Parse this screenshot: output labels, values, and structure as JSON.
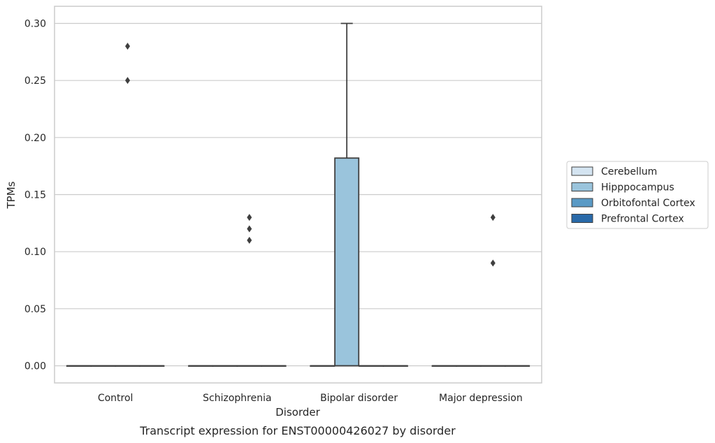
{
  "chart_data": {
    "type": "box",
    "title": "",
    "caption": "Transcript expression for ENST00000426027 by disorder",
    "xlabel": "Disorder",
    "ylabel": "TPMs",
    "ylim": [
      -0.015,
      0.315
    ],
    "yticks": [
      0.0,
      0.05,
      0.1,
      0.15,
      0.2,
      0.25,
      0.3
    ],
    "ytick_labels": [
      "0.00",
      "0.05",
      "0.10",
      "0.15",
      "0.20",
      "0.25",
      "0.30"
    ],
    "grid": "horizontal",
    "legend_position": "right",
    "categories": [
      "Control",
      "Schizophrenia",
      "Bipolar disorder",
      "Major depression"
    ],
    "hue_levels": [
      {
        "name": "Cerebellum",
        "color": "#d4e4f1"
      },
      {
        "name": "Hipppocampus",
        "color": "#9ac4dc"
      },
      {
        "name": "Orbitofontal Cortex",
        "color": "#5a9ac5"
      },
      {
        "name": "Prefrontal Cortex",
        "color": "#2a6aa9"
      }
    ],
    "boxes": [
      {
        "category": "Control",
        "hue": "Cerebellum",
        "q1": 0,
        "median": 0,
        "q3": 0,
        "whisker_low": 0,
        "whisker_high": 0,
        "outliers": []
      },
      {
        "category": "Control",
        "hue": "Hipppocampus",
        "q1": 0,
        "median": 0,
        "q3": 0,
        "whisker_low": 0,
        "whisker_high": 0,
        "outliers": []
      },
      {
        "category": "Control",
        "hue": "Orbitofontal Cortex",
        "q1": 0,
        "median": 0,
        "q3": 0,
        "whisker_low": 0,
        "whisker_high": 0,
        "outliers": [
          0.28,
          0.25
        ]
      },
      {
        "category": "Control",
        "hue": "Prefrontal Cortex",
        "q1": 0,
        "median": 0,
        "q3": 0,
        "whisker_low": 0,
        "whisker_high": 0,
        "outliers": []
      },
      {
        "category": "Schizophrenia",
        "hue": "Cerebellum",
        "q1": 0,
        "median": 0,
        "q3": 0,
        "whisker_low": 0,
        "whisker_high": 0,
        "outliers": []
      },
      {
        "category": "Schizophrenia",
        "hue": "Hipppocampus",
        "q1": 0,
        "median": 0,
        "q3": 0,
        "whisker_low": 0,
        "whisker_high": 0,
        "outliers": []
      },
      {
        "category": "Schizophrenia",
        "hue": "Orbitofontal Cortex",
        "q1": 0,
        "median": 0,
        "q3": 0,
        "whisker_low": 0,
        "whisker_high": 0,
        "outliers": [
          0.13,
          0.12,
          0.11
        ]
      },
      {
        "category": "Schizophrenia",
        "hue": "Prefrontal Cortex",
        "q1": 0,
        "median": 0,
        "q3": 0,
        "whisker_low": 0,
        "whisker_high": 0,
        "outliers": []
      },
      {
        "category": "Bipolar disorder",
        "hue": "Cerebellum",
        "q1": 0,
        "median": 0,
        "q3": 0,
        "whisker_low": 0,
        "whisker_high": 0,
        "outliers": []
      },
      {
        "category": "Bipolar disorder",
        "hue": "Hipppocampus",
        "q1": 0,
        "median": 0,
        "q3": 0.182,
        "whisker_low": 0,
        "whisker_high": 0.3,
        "outliers": []
      },
      {
        "category": "Bipolar disorder",
        "hue": "Orbitofontal Cortex",
        "q1": 0,
        "median": 0,
        "q3": 0,
        "whisker_low": 0,
        "whisker_high": 0,
        "outliers": []
      },
      {
        "category": "Bipolar disorder",
        "hue": "Prefrontal Cortex",
        "q1": 0,
        "median": 0,
        "q3": 0,
        "whisker_low": 0,
        "whisker_high": 0,
        "outliers": []
      },
      {
        "category": "Major depression",
        "hue": "Cerebellum",
        "q1": 0,
        "median": 0,
        "q3": 0,
        "whisker_low": 0,
        "whisker_high": 0,
        "outliers": []
      },
      {
        "category": "Major depression",
        "hue": "Hipppocampus",
        "q1": 0,
        "median": 0,
        "q3": 0,
        "whisker_low": 0,
        "whisker_high": 0,
        "outliers": []
      },
      {
        "category": "Major depression",
        "hue": "Orbitofontal Cortex",
        "q1": 0,
        "median": 0,
        "q3": 0,
        "whisker_low": 0,
        "whisker_high": 0,
        "outliers": [
          0.13,
          0.09
        ]
      },
      {
        "category": "Major depression",
        "hue": "Prefrontal Cortex",
        "q1": 0,
        "median": 0,
        "q3": 0,
        "whisker_low": 0,
        "whisker_high": 0,
        "outliers": []
      }
    ]
  }
}
